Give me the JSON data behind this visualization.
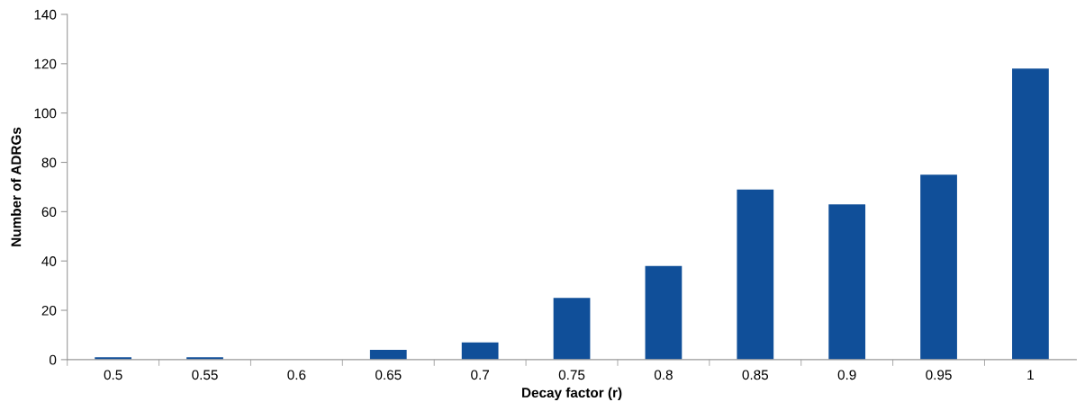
{
  "chart_data": {
    "type": "bar",
    "xlabel": "Decay factor (r)",
    "ylabel": "Number of ADRGs",
    "categories": [
      "0.5",
      "0.55",
      "0.6",
      "0.65",
      "0.7",
      "0.75",
      "0.8",
      "0.85",
      "0.9",
      "0.95",
      "1"
    ],
    "values": [
      1,
      1,
      0,
      4,
      7,
      25,
      38,
      69,
      63,
      75,
      118
    ],
    "color": "#104f99",
    "ylim": [
      0,
      140
    ],
    "yticks": [
      0,
      20,
      40,
      60,
      80,
      100,
      120,
      140
    ],
    "grid": false
  }
}
